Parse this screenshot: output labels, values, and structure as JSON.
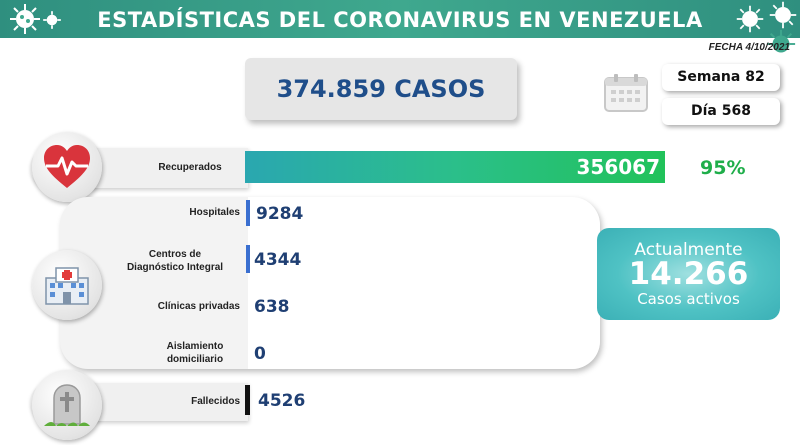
{
  "header": {
    "title": "ESTADÍSTICAS DEL CORONAVIRUS EN VENEZUELA",
    "date": "FECHA 4/10/2021"
  },
  "summary": {
    "total_cases": "374.859 CASOS",
    "week": "Semana 82",
    "day": "Día 568"
  },
  "recovered": {
    "label": "Recuperados",
    "value": "356067",
    "percent": "95%"
  },
  "active_cases": {
    "label_top": "Actualmente",
    "value": "14.266",
    "label_bottom": "Casos activos",
    "breakdown": [
      {
        "label": "Hospitales",
        "value": "9284"
      },
      {
        "label": "Centros de\nDiagnóstico Integral",
        "value": "4344"
      },
      {
        "label": "Clínicas privadas",
        "value": "638"
      },
      {
        "label": "Aislamiento\ndomiciliario",
        "value": "0"
      }
    ]
  },
  "deceased": {
    "label": "Fallecidos",
    "value": "4526"
  },
  "colors": {
    "header": "#3fa88e",
    "recovered_bar_start": "#2aa7b0",
    "recovered_bar_end": "#21c25a",
    "percent_green": "#1fae4a",
    "active_box": "#4fc2c4",
    "value_blue": "#1f3f73"
  },
  "icons": [
    "virus-icon",
    "calendar-icon",
    "heart-pulse-icon",
    "hospital-icon",
    "tombstone-icon"
  ]
}
